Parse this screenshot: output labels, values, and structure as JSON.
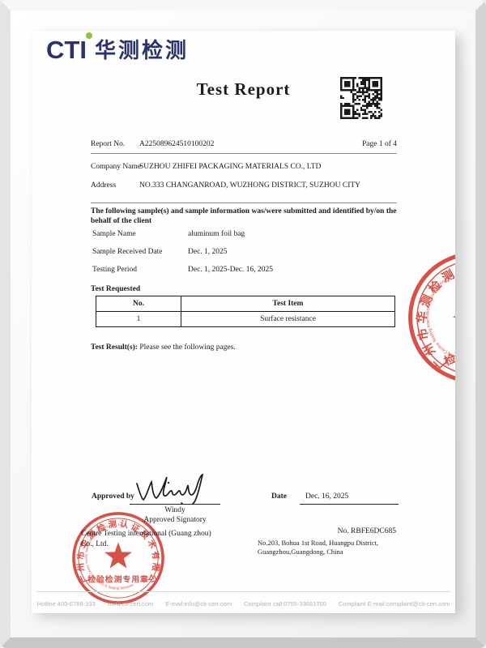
{
  "colors": {
    "navy": "#2A336B",
    "green": "#8DC63F",
    "stamp_red": "#D23A2E",
    "text": "#1c1c1c",
    "footer_gray": "#b2b2b2"
  },
  "logo": {
    "cti": "CTI",
    "chinese": "华测检测"
  },
  "title": "Test Report",
  "report": {
    "report_no_label": "Report No.",
    "report_no": "A225089624510100202",
    "page": "Page 1 of 4"
  },
  "client": {
    "company_label": "Company Name",
    "company": "SUZHOU ZHIFEI PACKAGING MATERIALS CO., LTD",
    "address_label": "Address",
    "address": "NO.333 CHANGANROAD, WUZHONG DISTRICT, SUZHOU CITY"
  },
  "sample_intro": "The following sample(s) and sample information was/were submitted and identified by/on the behalf of the client",
  "sample": {
    "rows": [
      {
        "label": "Sample Name",
        "value": "aluminum foil bag"
      },
      {
        "label": "Sample Received Date",
        "value": "Dec. 1, 2025"
      },
      {
        "label": "Testing Period",
        "value": "Dec. 1, 2025-Dec. 16, 2025"
      }
    ]
  },
  "test_requested": {
    "heading": "Test Requested",
    "headers": [
      "No.",
      "Test Item"
    ],
    "rows": [
      [
        "1",
        "Surface resistance"
      ]
    ]
  },
  "test_result": {
    "label": "Test Result(s):",
    "text": " Please see the following pages."
  },
  "approval": {
    "approved_by_label": "Approved by",
    "signature_name": "Windy",
    "signatory_name": "Windy",
    "signatory_role": "Approved Signatory",
    "date_label": "Date",
    "date_value": "Dec. 16, 2025"
  },
  "issuer": {
    "company_line1": "Centre Testing international (Guang zhou)",
    "company_line2": "Co., Ltd.",
    "cert_no": "No.  RBFE6DC685",
    "address_line1": "No.203, Bohua 1st Road, Huangpu District,",
    "address_line2": "Guangzhou,Guangdong, China"
  },
  "stamp": {
    "ring_text": "广州市华测检测认证技术有限公司",
    "inner_text": "Centre Testing International (Guangzhou) Co., Ltd",
    "bottom_cn": "检验检测专用章",
    "bottom_en": "Inspection & Testing Services"
  },
  "footer": {
    "items": [
      "Hotline:400-6788-333",
      "www.cti-cert.com",
      "E-mail:info@cti-cert.com",
      "Complaint call:0755-33681700",
      "Complaint E-mail:complaint@cti-cert.com"
    ]
  }
}
